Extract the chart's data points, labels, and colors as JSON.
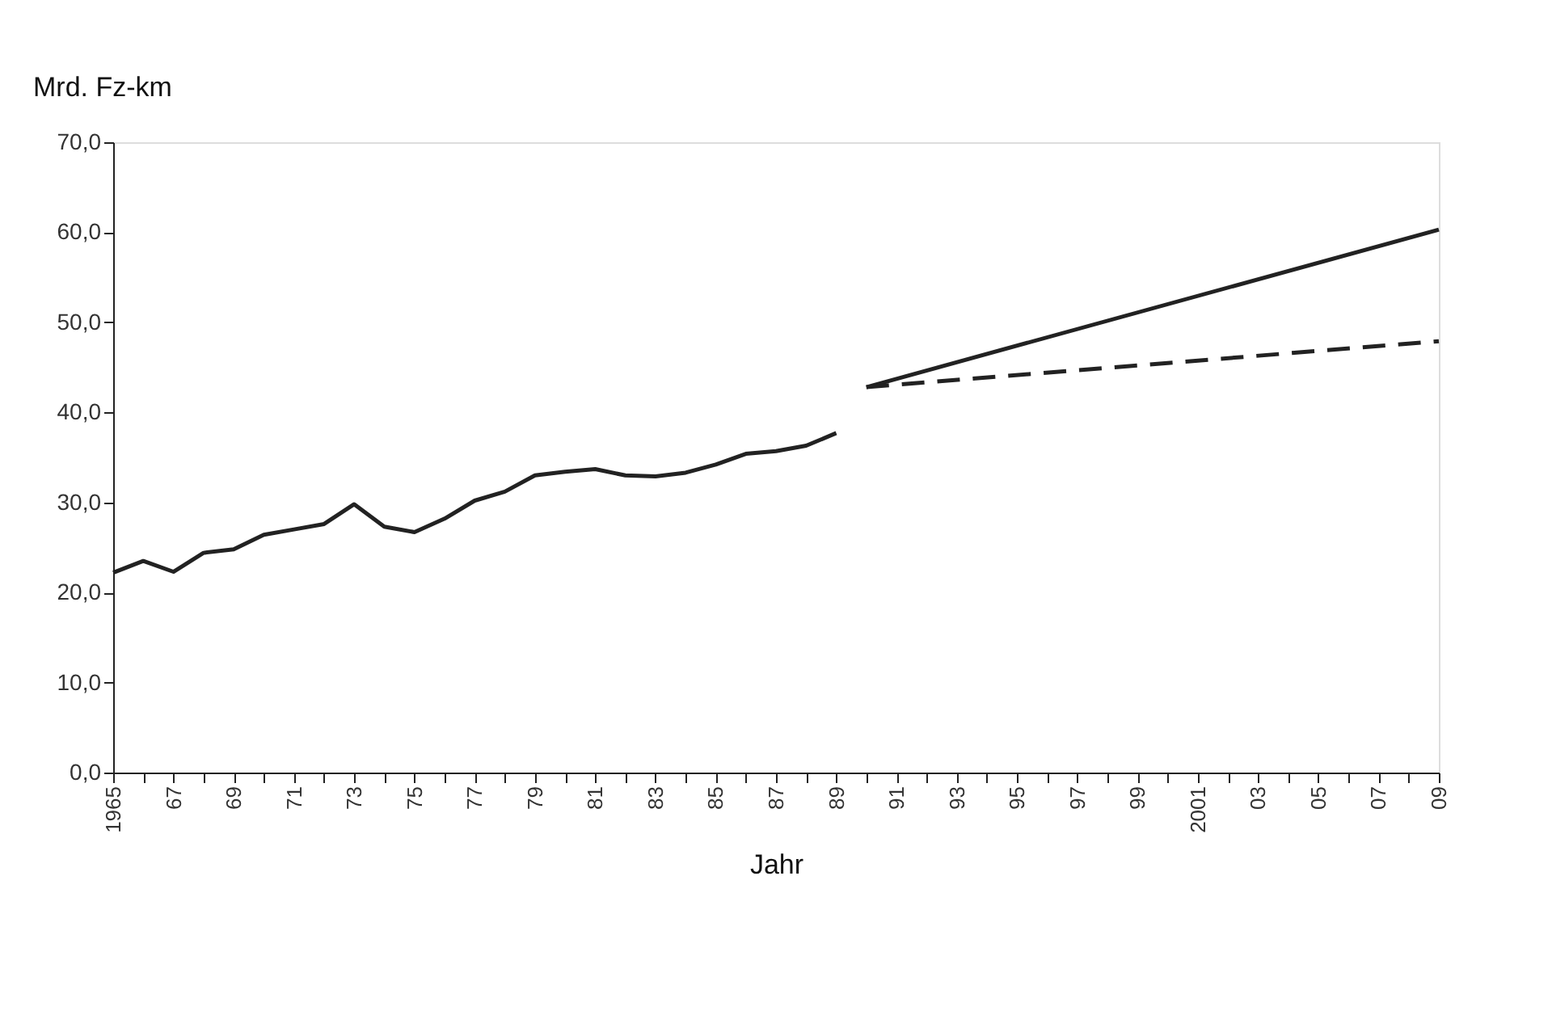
{
  "chart_data": {
    "type": "line",
    "ylabel": "Mrd. Fz-km",
    "xlabel": "Jahr",
    "xlim": [
      1965,
      2009
    ],
    "xticks": [
      {
        "value": 1965,
        "label": "1965"
      },
      {
        "value": 1966,
        "label": null
      },
      {
        "value": 1967,
        "label": "67"
      },
      {
        "value": 1968,
        "label": null
      },
      {
        "value": 1969,
        "label": "69"
      },
      {
        "value": 1970,
        "label": null
      },
      {
        "value": 1971,
        "label": "71"
      },
      {
        "value": 1972,
        "label": null
      },
      {
        "value": 1973,
        "label": "73"
      },
      {
        "value": 1974,
        "label": null
      },
      {
        "value": 1975,
        "label": "75"
      },
      {
        "value": 1976,
        "label": null
      },
      {
        "value": 1977,
        "label": "77"
      },
      {
        "value": 1978,
        "label": null
      },
      {
        "value": 1979,
        "label": "79"
      },
      {
        "value": 1980,
        "label": null
      },
      {
        "value": 1981,
        "label": "81"
      },
      {
        "value": 1982,
        "label": null
      },
      {
        "value": 1983,
        "label": "83"
      },
      {
        "value": 1984,
        "label": null
      },
      {
        "value": 1985,
        "label": "85"
      },
      {
        "value": 1986,
        "label": null
      },
      {
        "value": 1987,
        "label": "87"
      },
      {
        "value": 1988,
        "label": null
      },
      {
        "value": 1989,
        "label": "89"
      },
      {
        "value": 1990,
        "label": null
      },
      {
        "value": 1991,
        "label": "91"
      },
      {
        "value": 1992,
        "label": null
      },
      {
        "value": 1993,
        "label": "93"
      },
      {
        "value": 1994,
        "label": null
      },
      {
        "value": 1995,
        "label": "95"
      },
      {
        "value": 1996,
        "label": null
      },
      {
        "value": 1997,
        "label": "97"
      },
      {
        "value": 1998,
        "label": null
      },
      {
        "value": 1999,
        "label": "99"
      },
      {
        "value": 2000,
        "label": null
      },
      {
        "value": 2001,
        "label": "2001"
      },
      {
        "value": 2002,
        "label": null
      },
      {
        "value": 2003,
        "label": "03"
      },
      {
        "value": 2004,
        "label": null
      },
      {
        "value": 2005,
        "label": "05"
      },
      {
        "value": 2006,
        "label": null
      },
      {
        "value": 2007,
        "label": "07"
      },
      {
        "value": 2008,
        "label": null
      },
      {
        "value": 2009,
        "label": "09"
      }
    ],
    "ylim": [
      0,
      70
    ],
    "yticks": [
      {
        "value": 0,
        "label": "0,0"
      },
      {
        "value": 10,
        "label": "10,0"
      },
      {
        "value": 20,
        "label": "20,0"
      },
      {
        "value": 30,
        "label": "30,0"
      },
      {
        "value": 40,
        "label": "40,0"
      },
      {
        "value": 50,
        "label": "50,0"
      },
      {
        "value": 60,
        "label": "60,0"
      },
      {
        "value": 70,
        "label": "70,0"
      }
    ],
    "grid": false,
    "marker": "none",
    "series": [
      {
        "color": "#222222",
        "line_style": "solid",
        "x": [
          1965,
          1966,
          1967,
          1968,
          1969,
          1970,
          1971,
          1972,
          1973,
          1974,
          1975,
          1976,
          1977,
          1978,
          1979,
          1980,
          1981,
          1982,
          1983,
          1984,
          1985,
          1986,
          1987,
          1988,
          1989
        ],
        "values": [
          22.2,
          23.5,
          22.3,
          24.4,
          24.8,
          26.4,
          27.0,
          27.6,
          29.8,
          27.3,
          26.7,
          28.2,
          30.2,
          31.2,
          33.0,
          33.4,
          33.7,
          33.0,
          32.9,
          33.3,
          34.2,
          35.4,
          35.7,
          36.3,
          37.7
        ]
      },
      {
        "color": "#222222",
        "line_style": "solid",
        "x": [
          1990,
          2009
        ],
        "values": [
          42.8,
          60.3
        ]
      },
      {
        "color": "#222222",
        "line_style": "dashed",
        "x": [
          1990,
          2009
        ],
        "values": [
          42.8,
          47.9
        ]
      }
    ]
  }
}
